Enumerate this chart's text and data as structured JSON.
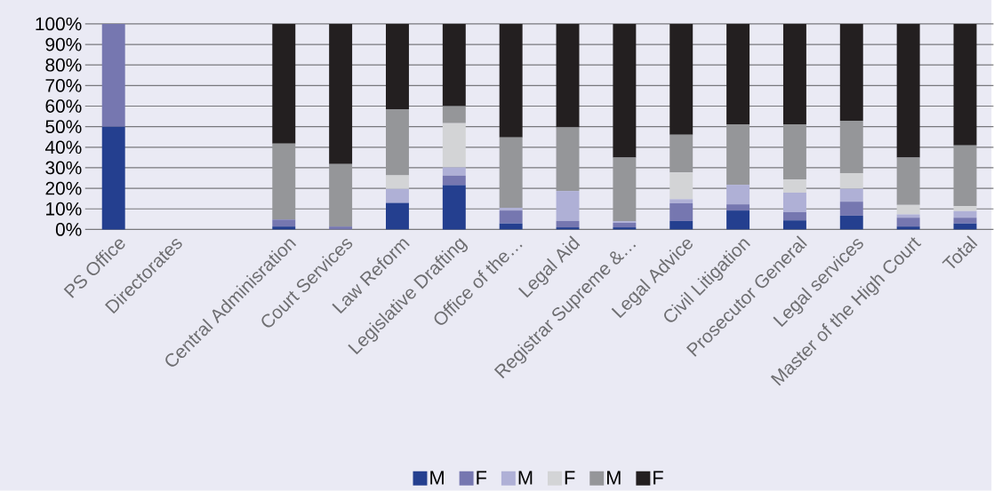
{
  "chart_data": {
    "type": "bar",
    "stacked": true,
    "categories": [
      "PS Office",
      "Directorates",
      null,
      "Central Adminisration",
      "Court Services",
      "Law Reform",
      "Legislative Drafting",
      "Office of the…",
      "Legal Aid",
      "Registrar Supreme &…",
      "Legal Advice",
      "Civil Litigation",
      "Prosecutor General",
      "Legal services",
      "Master of the High Court",
      "Total"
    ],
    "series": [
      {
        "name": "M",
        "color": "#243f8f",
        "values": [
          50,
          0,
          0,
          1.4,
          0,
          12.9,
          21.5,
          2.9,
          1.0,
          1.0,
          4.1,
          9.2,
          4.4,
          6.7,
          1.4,
          2.9
        ]
      },
      {
        "name": "F",
        "color": "#7677b0",
        "values": [
          50,
          0,
          0,
          3.4,
          1.4,
          0,
          4.7,
          6.3,
          3.1,
          2.2,
          8.6,
          3.0,
          4.0,
          6.8,
          4.3,
          2.8
        ]
      },
      {
        "name": "M",
        "color": "#afb0d6",
        "values": [
          0,
          0,
          0,
          0,
          0,
          6.8,
          4.0,
          1.3,
          14.6,
          0.8,
          2.0,
          9.5,
          9.5,
          6.3,
          1.6,
          3.2
        ]
      },
      {
        "name": "F",
        "color": "#d3d4d6",
        "values": [
          0,
          0,
          0,
          0,
          0,
          6.6,
          21.5,
          0,
          0,
          0,
          13.0,
          0,
          6.3,
          7.6,
          4.6,
          2.4
        ]
      },
      {
        "name": "M",
        "color": "#959699",
        "values": [
          0,
          0,
          0,
          36.9,
          30.4,
          32.2,
          8.3,
          34.3,
          30.9,
          30.9,
          18.4,
          29.5,
          27.0,
          25.5,
          23.0,
          29.6
        ]
      },
      {
        "name": "F",
        "color": "#231f20",
        "values": [
          0,
          0,
          0,
          58.3,
          68.2,
          41.5,
          40.0,
          55.2,
          50.4,
          65.1,
          53.9,
          48.8,
          48.8,
          47.1,
          65.1,
          59.1
        ]
      }
    ],
    "ylim": [
      0,
      100
    ],
    "yticks": [
      {
        "value": 0,
        "label": "0%"
      },
      {
        "value": 10,
        "label": "10%"
      },
      {
        "value": 20,
        "label": "20%"
      },
      {
        "value": 30,
        "label": "30%"
      },
      {
        "value": 40,
        "label": "40%"
      },
      {
        "value": 50,
        "label": "50%"
      },
      {
        "value": 60,
        "label": "60%"
      },
      {
        "value": 70,
        "label": "70%"
      },
      {
        "value": 80,
        "label": "80%"
      },
      {
        "value": 90,
        "label": "90%"
      },
      {
        "value": 100,
        "label": "100%"
      }
    ],
    "grid": "y",
    "legend": "bottom"
  }
}
